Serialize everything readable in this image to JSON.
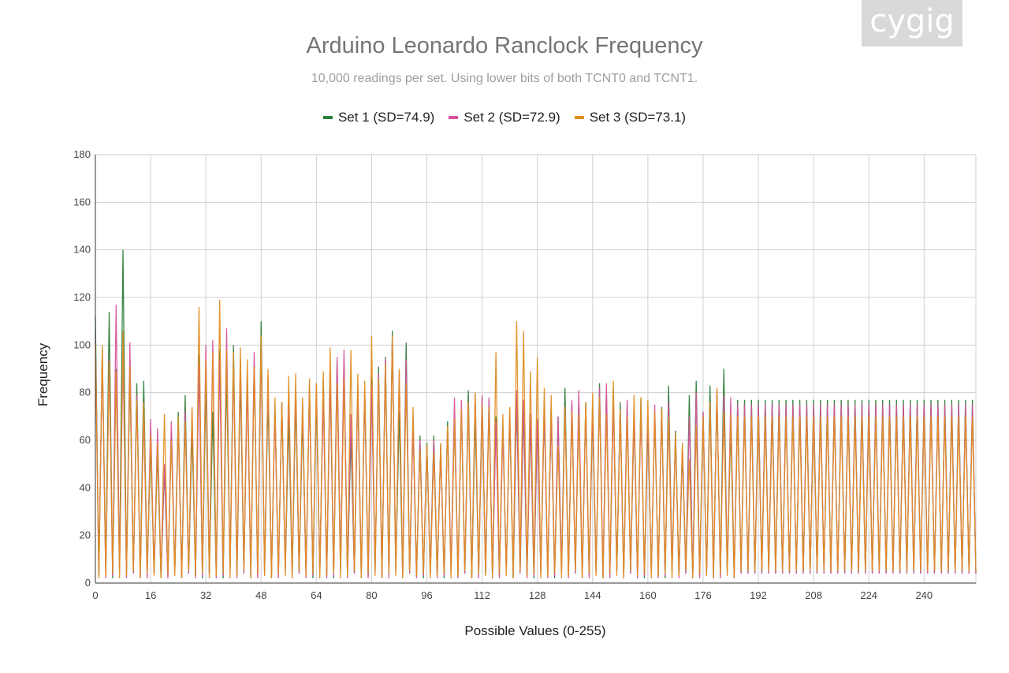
{
  "logo_text": "cygig",
  "colors": {
    "set1": "#2e7d3a",
    "set2": "#d6549b",
    "set3": "#e08e23",
    "grid": "#d0d0d0"
  },
  "chart_data": {
    "type": "line",
    "title": "Arduino Leonardo Ranclock Frequency",
    "subtitle": "10,000 readings per set. Using lower bits of both TCNT0 and TCNT1.",
    "xlabel": "Possible Values (0-255)",
    "ylabel": "Frequency",
    "xlim": [
      0,
      255
    ],
    "ylim": [
      0,
      180
    ],
    "xticks": [
      0,
      16,
      32,
      48,
      64,
      80,
      96,
      112,
      128,
      144,
      160,
      176,
      192,
      208,
      224,
      240
    ],
    "yticks": [
      0,
      20,
      40,
      60,
      80,
      100,
      120,
      140,
      160,
      180
    ],
    "grid": true,
    "legend_position": "top",
    "pattern_note": "Odd x values are near 0, even x values show the peaks",
    "series": [
      {
        "name": "Set 1 (SD=74.9)",
        "color": "#2e7d3a",
        "peaks": [
          112,
          98,
          114,
          90,
          140,
          88,
          84,
          85,
          60,
          55,
          48,
          63,
          72,
          79,
          64,
          96,
          86,
          72,
          98,
          88,
          100,
          88,
          88,
          92,
          110,
          79,
          75,
          76,
          70,
          78,
          70,
          83,
          78,
          86,
          88,
          93,
          92,
          62,
          82,
          80,
          86,
          91,
          95,
          106,
          72,
          101,
          68,
          62,
          59,
          62,
          58,
          68,
          69,
          73,
          81,
          71,
          78,
          77,
          70,
          66,
          70,
          77,
          73,
          69,
          68,
          74,
          71,
          70,
          82,
          75,
          74,
          76,
          72,
          84,
          79,
          81,
          76,
          74,
          71,
          78,
          67,
          71,
          74,
          83,
          64,
          55,
          79,
          85,
          72,
          83,
          80,
          90,
          66,
          77
        ],
        "troughs": [
          3,
          4,
          2,
          5,
          3,
          4,
          2,
          3,
          4,
          2,
          3,
          5,
          2,
          4,
          3,
          2,
          4,
          3,
          2,
          5,
          3,
          4,
          2,
          3,
          4,
          2,
          3,
          5,
          2,
          4,
          3,
          2,
          4,
          3,
          2,
          5,
          3,
          4,
          2,
          3,
          4,
          2,
          3,
          5,
          2,
          4,
          3,
          2,
          4,
          3,
          2,
          5,
          3,
          4,
          2,
          3,
          4,
          2,
          3,
          5,
          2,
          4,
          3,
          2,
          4,
          3,
          2,
          5,
          3,
          4,
          2,
          3,
          4,
          2,
          3,
          5,
          2,
          4,
          3,
          2,
          4,
          3,
          2,
          5,
          3,
          4,
          2,
          3,
          4,
          2,
          3,
          5,
          2,
          4
        ]
      },
      {
        "name": "Set 2 (SD=72.9)",
        "color": "#d6549b",
        "peaks": [
          104,
          96,
          94,
          117,
          96,
          101,
          79,
          71,
          69,
          65,
          50,
          68,
          66,
          72,
          73,
          92,
          100,
          102,
          94,
          107,
          91,
          94,
          84,
          97,
          100,
          87,
          72,
          76,
          80,
          83,
          75,
          81,
          84,
          78,
          89,
          95,
          98,
          71,
          82,
          81,
          83,
          88,
          94,
          103,
          89,
          94,
          66,
          60,
          58,
          60,
          57,
          65,
          78,
          77,
          76,
          80,
          79,
          78,
          68,
          65,
          73,
          81,
          77,
          71,
          69,
          73,
          72,
          70,
          74,
          77,
          81,
          75,
          74,
          82,
          84,
          76,
          73,
          77,
          72,
          74,
          70,
          75,
          73,
          76,
          62,
          57,
          70,
          80,
          72,
          76,
          81,
          79,
          78,
          75
        ],
        "troughs": [
          4,
          2,
          3,
          5,
          2,
          4,
          3,
          2,
          4,
          3,
          2,
          5,
          3,
          4,
          2,
          3,
          4,
          2,
          3,
          5,
          2,
          4,
          3,
          2,
          4,
          3,
          2,
          5,
          3,
          4,
          2,
          3,
          4,
          2,
          3,
          5,
          2,
          4,
          3,
          2,
          4,
          3,
          2,
          5,
          3,
          4,
          2,
          3,
          4,
          2,
          3,
          5,
          2,
          4,
          3,
          2,
          4,
          3,
          2,
          5,
          3,
          4,
          2,
          3,
          4,
          2,
          3,
          5,
          2,
          4,
          3,
          2,
          4,
          3,
          2,
          5,
          3,
          4,
          2,
          3,
          4,
          2,
          3,
          5,
          2,
          4,
          3,
          2,
          4,
          3,
          2,
          5,
          3,
          4
        ]
      },
      {
        "name": "Set 3 (SD=73.1)",
        "color": "#e08e23",
        "peaks": [
          101,
          100,
          93,
          89,
          106,
          91,
          77,
          76,
          62,
          59,
          71,
          60,
          70,
          68,
          74,
          116,
          94,
          97,
          119,
          98,
          97,
          99,
          94,
          91,
          104,
          90,
          78,
          76,
          87,
          88,
          78,
          86,
          84,
          89,
          99,
          84,
          86,
          98,
          88,
          85,
          104,
          86,
          92,
          104,
          90,
          84,
          74,
          56,
          58,
          55,
          59,
          66,
          69,
          73,
          76,
          80,
          75,
          74,
          97,
          71,
          74,
          110,
          106,
          89,
          95,
          82,
          79,
          58,
          74,
          72,
          71,
          76,
          80,
          78,
          71,
          85,
          73,
          70,
          79,
          78,
          77,
          72,
          73,
          70,
          63,
          59,
          52,
          66,
          70,
          76,
          82,
          72,
          71,
          70
        ],
        "troughs": [
          2,
          3,
          4,
          2,
          3,
          5,
          2,
          4,
          3,
          2,
          4,
          3,
          2,
          5,
          3,
          4,
          2,
          3,
          4,
          2,
          3,
          5,
          2,
          4,
          3,
          2,
          4,
          3,
          2,
          5,
          3,
          4,
          2,
          3,
          4,
          2,
          3,
          5,
          2,
          4,
          3,
          2,
          4,
          3,
          2,
          5,
          3,
          4,
          2,
          3,
          4,
          2,
          3,
          5,
          2,
          4,
          3,
          2,
          4,
          3,
          2,
          5,
          3,
          4,
          2,
          3,
          4,
          2,
          3,
          5,
          2,
          4,
          3,
          2,
          4,
          3,
          2,
          5,
          3,
          4,
          2,
          3,
          4,
          2,
          3,
          5,
          2,
          4,
          3,
          2,
          4,
          3,
          2,
          5
        ]
      }
    ]
  }
}
